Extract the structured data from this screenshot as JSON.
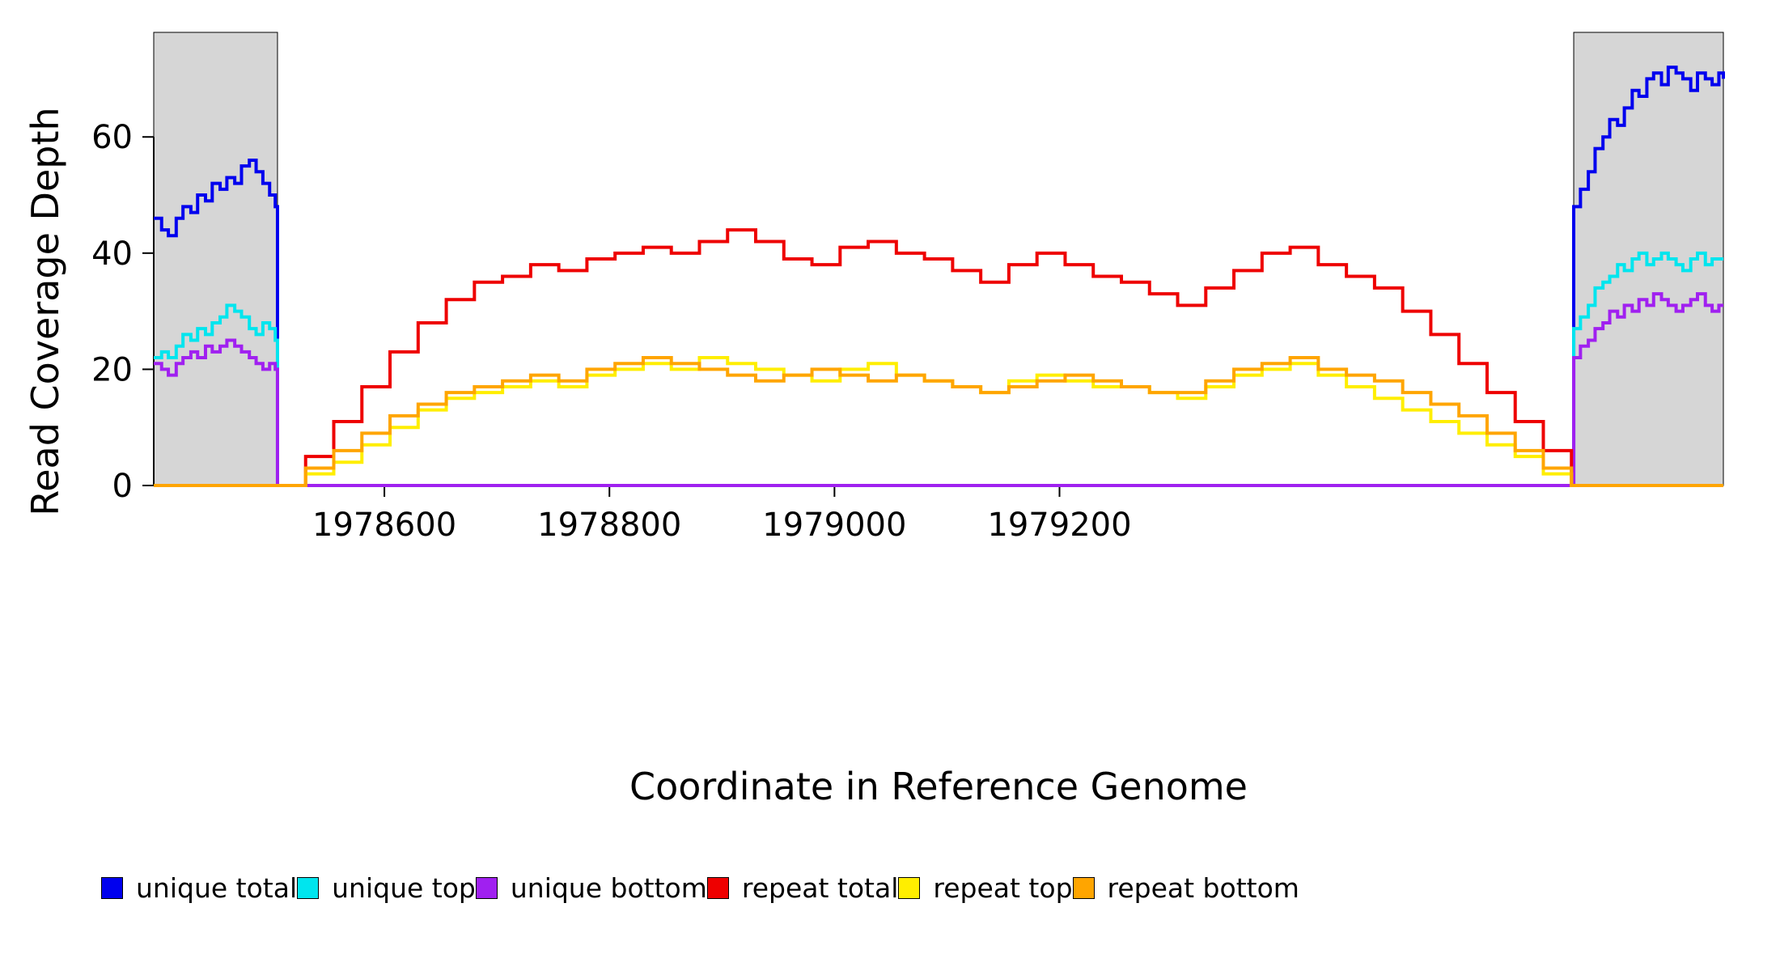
{
  "chart_data": {
    "type": "line",
    "title": "",
    "xlabel": "Coordinate in Reference Genome",
    "ylabel": "Read Coverage Depth",
    "xlim": [
      1978395,
      1979790
    ],
    "ylim": [
      0,
      78
    ],
    "x_ticks": [
      1978600,
      1978800,
      1979000,
      1979200
    ],
    "y_ticks": [
      0,
      20,
      40,
      60
    ],
    "step": true,
    "grid": false,
    "legend_position": "bottom",
    "shaded_regions": [
      {
        "x0": 1978395,
        "x1": 1978505,
        "color": "#d6d6d6"
      },
      {
        "x0": 1979657,
        "x1": 1979790,
        "color": "#d6d6d6"
      }
    ],
    "series": [
      {
        "name": "unique-total",
        "label": "unique total",
        "color": "#0000ee",
        "points": [
          [
            1978395,
            46
          ],
          [
            1978402,
            44
          ],
          [
            1978408,
            43
          ],
          [
            1978415,
            46
          ],
          [
            1978421,
            48
          ],
          [
            1978428,
            47
          ],
          [
            1978434,
            50
          ],
          [
            1978441,
            49
          ],
          [
            1978447,
            52
          ],
          [
            1978454,
            51
          ],
          [
            1978460,
            53
          ],
          [
            1978467,
            52
          ],
          [
            1978473,
            55
          ],
          [
            1978480,
            56
          ],
          [
            1978486,
            54
          ],
          [
            1978492,
            52
          ],
          [
            1978498,
            50
          ],
          [
            1978503,
            48
          ],
          [
            1978505,
            0
          ],
          [
            1979657,
            0
          ],
          [
            1979657,
            48
          ],
          [
            1979663,
            51
          ],
          [
            1979670,
            54
          ],
          [
            1979676,
            58
          ],
          [
            1979683,
            60
          ],
          [
            1979689,
            63
          ],
          [
            1979696,
            62
          ],
          [
            1979702,
            65
          ],
          [
            1979709,
            68
          ],
          [
            1979715,
            67
          ],
          [
            1979722,
            70
          ],
          [
            1979728,
            71
          ],
          [
            1979735,
            69
          ],
          [
            1979741,
            72
          ],
          [
            1979748,
            71
          ],
          [
            1979754,
            70
          ],
          [
            1979761,
            68
          ],
          [
            1979767,
            71
          ],
          [
            1979774,
            70
          ],
          [
            1979780,
            69
          ],
          [
            1979786,
            71
          ],
          [
            1979790,
            70
          ]
        ]
      },
      {
        "name": "unique-top",
        "label": "unique top",
        "color": "#00e5ee",
        "points": [
          [
            1978395,
            22
          ],
          [
            1978402,
            23
          ],
          [
            1978408,
            22
          ],
          [
            1978415,
            24
          ],
          [
            1978421,
            26
          ],
          [
            1978428,
            25
          ],
          [
            1978434,
            27
          ],
          [
            1978441,
            26
          ],
          [
            1978447,
            28
          ],
          [
            1978454,
            29
          ],
          [
            1978460,
            31
          ],
          [
            1978467,
            30
          ],
          [
            1978473,
            29
          ],
          [
            1978480,
            27
          ],
          [
            1978486,
            26
          ],
          [
            1978492,
            28
          ],
          [
            1978498,
            27
          ],
          [
            1978503,
            25
          ],
          [
            1978505,
            0
          ],
          [
            1979657,
            0
          ],
          [
            1979657,
            27
          ],
          [
            1979663,
            29
          ],
          [
            1979670,
            31
          ],
          [
            1979676,
            34
          ],
          [
            1979683,
            35
          ],
          [
            1979689,
            36
          ],
          [
            1979696,
            38
          ],
          [
            1979702,
            37
          ],
          [
            1979709,
            39
          ],
          [
            1979715,
            40
          ],
          [
            1979722,
            38
          ],
          [
            1979728,
            39
          ],
          [
            1979735,
            40
          ],
          [
            1979741,
            39
          ],
          [
            1979748,
            38
          ],
          [
            1979754,
            37
          ],
          [
            1979761,
            39
          ],
          [
            1979767,
            40
          ],
          [
            1979774,
            38
          ],
          [
            1979780,
            39
          ],
          [
            1979786,
            39
          ],
          [
            1979790,
            39
          ]
        ]
      },
      {
        "name": "unique-bottom",
        "label": "unique bottom",
        "color": "#a020f0",
        "points": [
          [
            1978395,
            21
          ],
          [
            1978402,
            20
          ],
          [
            1978408,
            19
          ],
          [
            1978415,
            21
          ],
          [
            1978421,
            22
          ],
          [
            1978428,
            23
          ],
          [
            1978434,
            22
          ],
          [
            1978441,
            24
          ],
          [
            1978447,
            23
          ],
          [
            1978454,
            24
          ],
          [
            1978460,
            25
          ],
          [
            1978467,
            24
          ],
          [
            1978473,
            23
          ],
          [
            1978480,
            22
          ],
          [
            1978486,
            21
          ],
          [
            1978492,
            20
          ],
          [
            1978498,
            21
          ],
          [
            1978503,
            20
          ],
          [
            1978505,
            0
          ],
          [
            1979657,
            0
          ],
          [
            1979657,
            22
          ],
          [
            1979663,
            24
          ],
          [
            1979670,
            25
          ],
          [
            1979676,
            27
          ],
          [
            1979683,
            28
          ],
          [
            1979689,
            30
          ],
          [
            1979696,
            29
          ],
          [
            1979702,
            31
          ],
          [
            1979709,
            30
          ],
          [
            1979715,
            32
          ],
          [
            1979722,
            31
          ],
          [
            1979728,
            33
          ],
          [
            1979735,
            32
          ],
          [
            1979741,
            31
          ],
          [
            1979748,
            30
          ],
          [
            1979754,
            31
          ],
          [
            1979761,
            32
          ],
          [
            1979767,
            33
          ],
          [
            1979774,
            31
          ],
          [
            1979780,
            30
          ],
          [
            1979786,
            31
          ],
          [
            1979790,
            31
          ]
        ]
      },
      {
        "name": "repeat-total",
        "label": "repeat total",
        "color": "#ee0000",
        "points": [
          [
            1978395,
            0
          ],
          [
            1978505,
            0
          ],
          [
            1978530,
            5
          ],
          [
            1978555,
            11
          ],
          [
            1978580,
            17
          ],
          [
            1978605,
            23
          ],
          [
            1978630,
            28
          ],
          [
            1978655,
            32
          ],
          [
            1978680,
            35
          ],
          [
            1978705,
            36
          ],
          [
            1978730,
            38
          ],
          [
            1978755,
            37
          ],
          [
            1978780,
            39
          ],
          [
            1978805,
            40
          ],
          [
            1978830,
            41
          ],
          [
            1978855,
            40
          ],
          [
            1978880,
            42
          ],
          [
            1978905,
            44
          ],
          [
            1978930,
            42
          ],
          [
            1978955,
            39
          ],
          [
            1978980,
            38
          ],
          [
            1979005,
            41
          ],
          [
            1979030,
            42
          ],
          [
            1979055,
            40
          ],
          [
            1979080,
            39
          ],
          [
            1979105,
            37
          ],
          [
            1979130,
            35
          ],
          [
            1979155,
            38
          ],
          [
            1979180,
            40
          ],
          [
            1979205,
            38
          ],
          [
            1979230,
            36
          ],
          [
            1979255,
            35
          ],
          [
            1979280,
            33
          ],
          [
            1979305,
            31
          ],
          [
            1979330,
            34
          ],
          [
            1979355,
            37
          ],
          [
            1979380,
            40
          ],
          [
            1979405,
            41
          ],
          [
            1979430,
            38
          ],
          [
            1979455,
            36
          ],
          [
            1979480,
            34
          ],
          [
            1979505,
            30
          ],
          [
            1979530,
            26
          ],
          [
            1979555,
            21
          ],
          [
            1979580,
            16
          ],
          [
            1979605,
            11
          ],
          [
            1979630,
            6
          ],
          [
            1979655,
            0
          ],
          [
            1979790,
            0
          ]
        ]
      },
      {
        "name": "repeat-top",
        "label": "repeat top",
        "color": "#ffee00",
        "points": [
          [
            1978395,
            0
          ],
          [
            1978505,
            0
          ],
          [
            1978530,
            2
          ],
          [
            1978555,
            4
          ],
          [
            1978580,
            7
          ],
          [
            1978605,
            10
          ],
          [
            1978630,
            13
          ],
          [
            1978655,
            15
          ],
          [
            1978680,
            16
          ],
          [
            1978705,
            17
          ],
          [
            1978730,
            18
          ],
          [
            1978755,
            17
          ],
          [
            1978780,
            19
          ],
          [
            1978805,
            20
          ],
          [
            1978830,
            21
          ],
          [
            1978855,
            20
          ],
          [
            1978880,
            22
          ],
          [
            1978905,
            21
          ],
          [
            1978930,
            20
          ],
          [
            1978955,
            19
          ],
          [
            1978980,
            18
          ],
          [
            1979005,
            20
          ],
          [
            1979030,
            21
          ],
          [
            1979055,
            19
          ],
          [
            1979080,
            18
          ],
          [
            1979105,
            17
          ],
          [
            1979130,
            16
          ],
          [
            1979155,
            18
          ],
          [
            1979180,
            19
          ],
          [
            1979205,
            18
          ],
          [
            1979230,
            17
          ],
          [
            1979255,
            17
          ],
          [
            1979280,
            16
          ],
          [
            1979305,
            15
          ],
          [
            1979330,
            17
          ],
          [
            1979355,
            19
          ],
          [
            1979380,
            20
          ],
          [
            1979405,
            21
          ],
          [
            1979430,
            19
          ],
          [
            1979455,
            17
          ],
          [
            1979480,
            15
          ],
          [
            1979505,
            13
          ],
          [
            1979530,
            11
          ],
          [
            1979555,
            9
          ],
          [
            1979580,
            7
          ],
          [
            1979605,
            5
          ],
          [
            1979630,
            2
          ],
          [
            1979655,
            0
          ],
          [
            1979790,
            0
          ]
        ]
      },
      {
        "name": "repeat-bottom",
        "label": "repeat bottom",
        "color": "#ffa500",
        "points": [
          [
            1978395,
            0
          ],
          [
            1978505,
            0
          ],
          [
            1978530,
            3
          ],
          [
            1978555,
            6
          ],
          [
            1978580,
            9
          ],
          [
            1978605,
            12
          ],
          [
            1978630,
            14
          ],
          [
            1978655,
            16
          ],
          [
            1978680,
            17
          ],
          [
            1978705,
            18
          ],
          [
            1978730,
            19
          ],
          [
            1978755,
            18
          ],
          [
            1978780,
            20
          ],
          [
            1978805,
            21
          ],
          [
            1978830,
            22
          ],
          [
            1978855,
            21
          ],
          [
            1978880,
            20
          ],
          [
            1978905,
            19
          ],
          [
            1978930,
            18
          ],
          [
            1978955,
            19
          ],
          [
            1978980,
            20
          ],
          [
            1979005,
            19
          ],
          [
            1979030,
            18
          ],
          [
            1979055,
            19
          ],
          [
            1979080,
            18
          ],
          [
            1979105,
            17
          ],
          [
            1979130,
            16
          ],
          [
            1979155,
            17
          ],
          [
            1979180,
            18
          ],
          [
            1979205,
            19
          ],
          [
            1979230,
            18
          ],
          [
            1979255,
            17
          ],
          [
            1979280,
            16
          ],
          [
            1979305,
            16
          ],
          [
            1979330,
            18
          ],
          [
            1979355,
            20
          ],
          [
            1979380,
            21
          ],
          [
            1979405,
            22
          ],
          [
            1979430,
            20
          ],
          [
            1979455,
            19
          ],
          [
            1979480,
            18
          ],
          [
            1979505,
            16
          ],
          [
            1979530,
            14
          ],
          [
            1979555,
            12
          ],
          [
            1979580,
            9
          ],
          [
            1979605,
            6
          ],
          [
            1979630,
            3
          ],
          [
            1979655,
            0
          ],
          [
            1979790,
            0
          ]
        ]
      }
    ]
  }
}
